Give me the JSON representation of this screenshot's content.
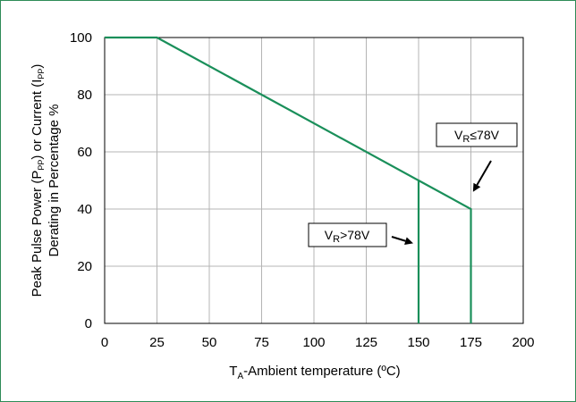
{
  "chart_data": {
    "type": "line",
    "xlabel": {
      "main": "T",
      "sub": "A",
      "rest": "-Ambient temperature (ºC)"
    },
    "ylabel": {
      "line1_parts": [
        "Peak Pulse Power (P",
        "PP",
        ") or Current (I",
        "PP",
        ")"
      ],
      "line2": "Derating in Percentage %"
    },
    "xlim": [
      0,
      200
    ],
    "ylim": [
      0,
      100
    ],
    "x_ticks": [
      0,
      25,
      50,
      75,
      100,
      125,
      150,
      175,
      200
    ],
    "y_ticks": [
      0,
      20,
      40,
      60,
      80,
      100
    ],
    "grid": true,
    "colors": {
      "series": "#1a8f5a",
      "grid": "#b4b4b4",
      "frame": "#2e8b57"
    },
    "series": [
      {
        "points": [
          [
            0,
            100
          ],
          [
            25,
            100
          ],
          [
            150,
            50
          ],
          [
            150,
            0
          ]
        ]
      },
      {
        "points": [
          [
            150,
            50
          ],
          [
            175,
            40
          ],
          [
            175,
            0
          ]
        ]
      }
    ],
    "annotations": [
      {
        "label_main": "V",
        "label_sub": "R",
        "label_rest": ">78V",
        "arrow_to": [
          150,
          28
        ]
      },
      {
        "label_main": "V",
        "label_sub": "R",
        "label_rest": "≤78V",
        "arrow_to": [
          176,
          46
        ]
      }
    ]
  }
}
